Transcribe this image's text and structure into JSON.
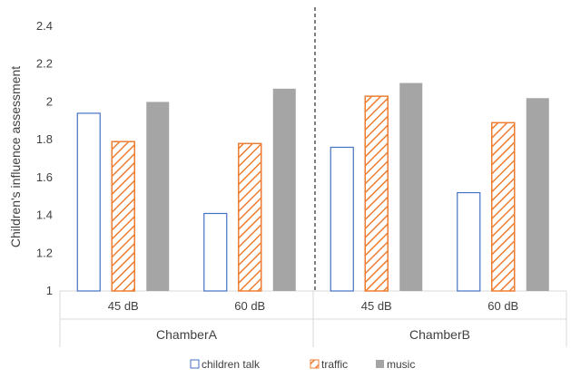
{
  "chart_data": {
    "type": "bar",
    "title": "",
    "xlabel": "",
    "ylabel": "Children's influence assessment",
    "ylim": [
      1,
      2.4
    ],
    "yticks": [
      "1",
      "1.2",
      "1.4",
      "1.6",
      "1.8",
      "2",
      "2.2",
      "2.4"
    ],
    "grid": false,
    "legend_position": "bottom",
    "groups": [
      {
        "name": "ChamberA",
        "categories": [
          "45 dB",
          "60 dB"
        ]
      },
      {
        "name": "ChamberB",
        "categories": [
          "45 dB",
          "60 dB"
        ]
      }
    ],
    "categories": [
      "45 dB",
      "60 dB",
      "45 dB",
      "60 dB"
    ],
    "series": [
      {
        "name": "children talk",
        "style": "outline",
        "color": "#4472C4",
        "values": [
          1.94,
          1.41,
          1.76,
          1.52
        ]
      },
      {
        "name": "traffic",
        "style": "hatched",
        "color": "#ED7D31",
        "values": [
          1.79,
          1.78,
          2.03,
          1.89
        ]
      },
      {
        "name": "music",
        "style": "solid",
        "color": "#A5A5A5",
        "values": [
          2.0,
          2.07,
          2.1,
          2.02
        ]
      }
    ],
    "divider": "dashed vertical line between ChamberA and ChamberB"
  }
}
